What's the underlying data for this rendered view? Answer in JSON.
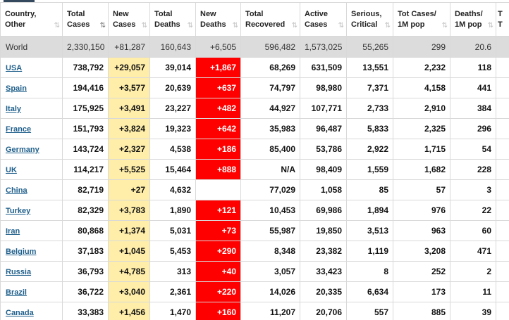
{
  "columns": [
    {
      "label": "Country,\nOther",
      "sort": "⇅",
      "active": false
    },
    {
      "label": "Total\nCases",
      "sort": "⇅",
      "active": true
    },
    {
      "label": "New\nCases",
      "sort": "⇅",
      "active": false
    },
    {
      "label": "Total\nDeaths",
      "sort": "⇅",
      "active": false
    },
    {
      "label": "New\nDeaths",
      "sort": "⇅",
      "active": false
    },
    {
      "label": "Total\nRecovered",
      "sort": "⇅",
      "active": false
    },
    {
      "label": "Active\nCases",
      "sort": "⇅",
      "active": false
    },
    {
      "label": "Serious,\nCritical",
      "sort": "⇅",
      "active": false
    },
    {
      "label": "Tot Cases/\n1M pop",
      "sort": "⇅",
      "active": false
    },
    {
      "label": "Deaths/\n1M pop",
      "sort": "⇅",
      "active": false
    },
    {
      "label": "T\nT",
      "sort": "",
      "active": false
    }
  ],
  "world": {
    "country": "World",
    "total_cases": "2,330,150",
    "new_cases": "+81,287",
    "total_deaths": "160,643",
    "new_deaths": "+6,505",
    "total_recovered": "596,482",
    "active_cases": "1,573,025",
    "serious": "55,265",
    "cases_per_1m": "299",
    "deaths_per_1m": "20.6"
  },
  "rows": [
    {
      "country": "USA",
      "total_cases": "738,792",
      "new_cases": "+29,057",
      "total_deaths": "39,014",
      "new_deaths": "+1,867",
      "total_recovered": "68,269",
      "active_cases": "631,509",
      "serious": "13,551",
      "cases_per_1m": "2,232",
      "deaths_per_1m": "118"
    },
    {
      "country": "Spain",
      "total_cases": "194,416",
      "new_cases": "+3,577",
      "total_deaths": "20,639",
      "new_deaths": "+637",
      "total_recovered": "74,797",
      "active_cases": "98,980",
      "serious": "7,371",
      "cases_per_1m": "4,158",
      "deaths_per_1m": "441"
    },
    {
      "country": "Italy",
      "total_cases": "175,925",
      "new_cases": "+3,491",
      "total_deaths": "23,227",
      "new_deaths": "+482",
      "total_recovered": "44,927",
      "active_cases": "107,771",
      "serious": "2,733",
      "cases_per_1m": "2,910",
      "deaths_per_1m": "384"
    },
    {
      "country": "France",
      "total_cases": "151,793",
      "new_cases": "+3,824",
      "total_deaths": "19,323",
      "new_deaths": "+642",
      "total_recovered": "35,983",
      "active_cases": "96,487",
      "serious": "5,833",
      "cases_per_1m": "2,325",
      "deaths_per_1m": "296"
    },
    {
      "country": "Germany",
      "total_cases": "143,724",
      "new_cases": "+2,327",
      "total_deaths": "4,538",
      "new_deaths": "+186",
      "total_recovered": "85,400",
      "active_cases": "53,786",
      "serious": "2,922",
      "cases_per_1m": "1,715",
      "deaths_per_1m": "54"
    },
    {
      "country": "UK",
      "total_cases": "114,217",
      "new_cases": "+5,525",
      "total_deaths": "15,464",
      "new_deaths": "+888",
      "total_recovered": "N/A",
      "active_cases": "98,409",
      "serious": "1,559",
      "cases_per_1m": "1,682",
      "deaths_per_1m": "228"
    },
    {
      "country": "China",
      "total_cases": "82,719",
      "new_cases": "+27",
      "total_deaths": "4,632",
      "new_deaths": "",
      "total_recovered": "77,029",
      "active_cases": "1,058",
      "serious": "85",
      "cases_per_1m": "57",
      "deaths_per_1m": "3"
    },
    {
      "country": "Turkey",
      "total_cases": "82,329",
      "new_cases": "+3,783",
      "total_deaths": "1,890",
      "new_deaths": "+121",
      "total_recovered": "10,453",
      "active_cases": "69,986",
      "serious": "1,894",
      "cases_per_1m": "976",
      "deaths_per_1m": "22"
    },
    {
      "country": "Iran",
      "total_cases": "80,868",
      "new_cases": "+1,374",
      "total_deaths": "5,031",
      "new_deaths": "+73",
      "total_recovered": "55,987",
      "active_cases": "19,850",
      "serious": "3,513",
      "cases_per_1m": "963",
      "deaths_per_1m": "60"
    },
    {
      "country": "Belgium",
      "total_cases": "37,183",
      "new_cases": "+1,045",
      "total_deaths": "5,453",
      "new_deaths": "+290",
      "total_recovered": "8,348",
      "active_cases": "23,382",
      "serious": "1,119",
      "cases_per_1m": "3,208",
      "deaths_per_1m": "471"
    },
    {
      "country": "Russia",
      "total_cases": "36,793",
      "new_cases": "+4,785",
      "total_deaths": "313",
      "new_deaths": "+40",
      "total_recovered": "3,057",
      "active_cases": "33,423",
      "serious": "8",
      "cases_per_1m": "252",
      "deaths_per_1m": "2"
    },
    {
      "country": "Brazil",
      "total_cases": "36,722",
      "new_cases": "+3,040",
      "total_deaths": "2,361",
      "new_deaths": "+220",
      "total_recovered": "14,026",
      "active_cases": "20,335",
      "serious": "6,634",
      "cases_per_1m": "173",
      "deaths_per_1m": "11"
    },
    {
      "country": "Canada",
      "total_cases": "33,383",
      "new_cases": "+1,456",
      "total_deaths": "1,470",
      "new_deaths": "+160",
      "total_recovered": "11,207",
      "active_cases": "20,706",
      "serious": "557",
      "cases_per_1m": "885",
      "deaths_per_1m": "39"
    }
  ],
  "colors": {
    "new_cases_bg": "#ffeeaa",
    "new_deaths_bg": "#ff0000",
    "world_row_bg": "#dcdcdc",
    "link": "#1f5f8b"
  }
}
